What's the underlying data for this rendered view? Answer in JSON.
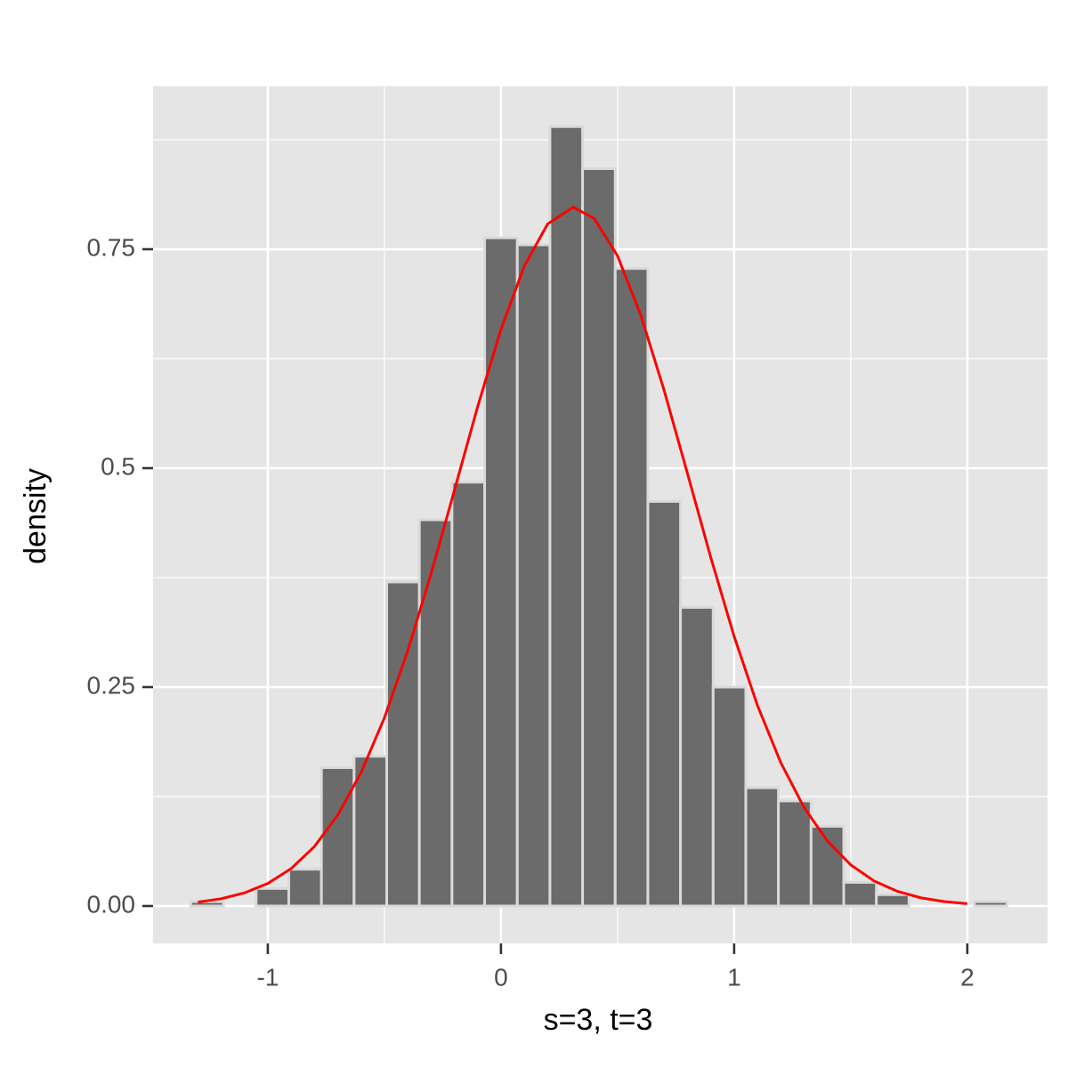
{
  "chart_data": {
    "type": "histogram",
    "x_label": "s=3, t=3",
    "y_label": "density",
    "bins": [
      -1.33,
      -1.19,
      -1.05,
      -0.91,
      -0.77,
      -0.63,
      -0.49,
      -0.35,
      -0.21,
      -0.07,
      0.07,
      0.21,
      0.35,
      0.49,
      0.63,
      0.77,
      0.91,
      1.05,
      1.19,
      1.33,
      1.47,
      1.61,
      1.75,
      1.89,
      2.03,
      2.17
    ],
    "values": [
      0.005,
      0,
      0.02,
      0.042,
      0.158,
      0.171,
      0.37,
      0.441,
      0.484,
      0.763,
      0.755,
      0.89,
      0.842,
      0.728,
      0.462,
      0.341,
      0.25,
      0.135,
      0.12,
      0.091,
      0.027,
      0.013,
      0,
      0,
      0.005
    ],
    "color": "#6b6b6b",
    "edge_color": "#d9d9d9",
    "curve": {
      "color": "#ff0000",
      "x": [
        -1.3,
        -1.2,
        -1.1,
        -1.0,
        -0.9,
        -0.8,
        -0.7,
        -0.6,
        -0.5,
        -0.4,
        -0.3,
        -0.2,
        -0.1,
        0.0,
        0.1,
        0.2,
        0.31,
        0.4,
        0.5,
        0.6,
        0.7,
        0.8,
        0.9,
        1.0,
        1.1,
        1.2,
        1.3,
        1.4,
        1.5,
        1.6,
        1.7,
        1.8,
        1.9,
        2.0
      ],
      "values": [
        0.0045,
        0.0083,
        0.015,
        0.0258,
        0.0427,
        0.0679,
        0.1038,
        0.1523,
        0.2149,
        0.2912,
        0.3792,
        0.4744,
        0.5702,
        0.6585,
        0.7307,
        0.7788,
        0.798,
        0.7851,
        0.7423,
        0.6744,
        0.5886,
        0.4937,
        0.3978,
        0.3079,
        0.229,
        0.1637,
        0.1124,
        0.0741,
        0.047,
        0.0286,
        0.0168,
        0.0094,
        0.0051,
        0.0026
      ]
    },
    "xlim": [
      -1.492,
      2.344
    ],
    "ylim": [
      -0.0427,
      0.936
    ],
    "xticks": [
      -1,
      0,
      1,
      2
    ],
    "yticks": [
      {
        "value": 0,
        "label": "0.00"
      },
      0.25,
      0.5,
      0.75
    ],
    "x_minor_grid": [
      -0.5,
      0.5,
      1.5
    ],
    "y_minor_grid": [
      0.125,
      0.375,
      0.625,
      0.875
    ],
    "grid": true
  }
}
